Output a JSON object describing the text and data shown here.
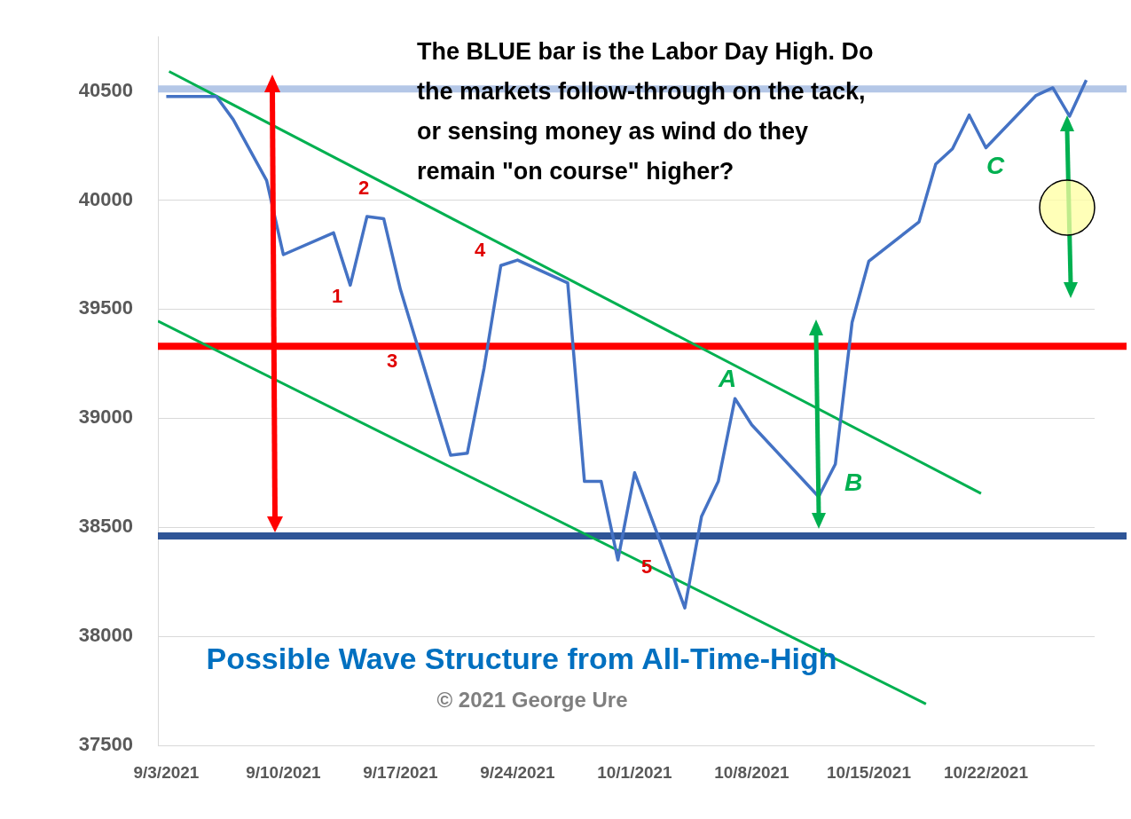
{
  "chart_data": {
    "type": "line",
    "title": "Possible Wave Structure from All-Time-High",
    "x": [
      "2021-09-03",
      "2021-09-06",
      "2021-09-07",
      "2021-09-09",
      "2021-09-10",
      "2021-09-13",
      "2021-09-14",
      "2021-09-15",
      "2021-09-16",
      "2021-09-17",
      "2021-09-20",
      "2021-09-21",
      "2021-09-22",
      "2021-09-23",
      "2021-09-24",
      "2021-09-27",
      "2021-09-28",
      "2021-09-29",
      "2021-09-30",
      "2021-10-01",
      "2021-10-04",
      "2021-10-05",
      "2021-10-06",
      "2021-10-07",
      "2021-10-08",
      "2021-10-12",
      "2021-10-13",
      "2021-10-14",
      "2021-10-15",
      "2021-10-18",
      "2021-10-19",
      "2021-10-20",
      "2021-10-21",
      "2021-10-22",
      "2021-10-25",
      "2021-10-26",
      "2021-10-27",
      "2021-10-28"
    ],
    "series": [
      {
        "color": "#4472c4",
        "values": [
          40475,
          40475,
          40370,
          40090,
          39750,
          39850,
          39610,
          39925,
          39915,
          39590,
          38830,
          38840,
          39230,
          39700,
          39725,
          39620,
          38710,
          38710,
          38350,
          38750,
          38130,
          38550,
          38710,
          39090,
          38970,
          38640,
          38790,
          39440,
          39720,
          39900,
          40165,
          40235,
          40390,
          40240,
          40480,
          40515,
          40385,
          40550
        ]
      },
      {
        "type": "line",
        "color": "#00b050",
        "x": [
          "2021-09-03T04:00",
          "2021-10-21T17:00"
        ],
        "values": [
          40590,
          38655
        ]
      },
      {
        "type": "line",
        "color": "#00b050",
        "x": [
          "2021-09-02T12:00",
          "2021-10-18T10:00"
        ],
        "values": [
          39445,
          37690
        ]
      }
    ],
    "xlim": [
      "2021-09-02T12:00",
      "2021-10-28T12:00"
    ],
    "xticks": [
      {
        "value": "2021-09-03",
        "label": "9/3/2021"
      },
      {
        "value": "2021-09-10",
        "label": "9/10/2021"
      },
      {
        "value": "2021-09-17",
        "label": "9/17/2021"
      },
      {
        "value": "2021-09-24",
        "label": "9/24/2021"
      },
      {
        "value": "2021-10-01",
        "label": "10/1/2021"
      },
      {
        "value": "2021-10-08",
        "label": "10/8/2021"
      },
      {
        "value": "2021-10-15",
        "label": "10/15/2021"
      },
      {
        "value": "2021-10-22",
        "label": "10/22/2021"
      }
    ],
    "ylim": [
      37500,
      40750
    ],
    "yticks": [
      37500,
      38000,
      38500,
      39000,
      39500,
      40000,
      40500
    ],
    "grid": "y",
    "legend": false,
    "line_style": "solid",
    "ref_lines": [
      {
        "axis": "y",
        "value": 40510,
        "color": "#b4c7e7"
      },
      {
        "axis": "y",
        "value": 38460,
        "color": "#2f5597"
      },
      {
        "axis": "y",
        "value": 39330,
        "color": "#ff0000"
      }
    ],
    "annotations": [
      "The BLUE bar is the Labor Day High. Do the markets follow-through on the tack, or sensing money as wind do they remain \"on course\" higher?",
      "© 2021 George Ure",
      "1",
      "2",
      "3",
      "4",
      "5",
      "A",
      "B",
      "C"
    ]
  }
}
